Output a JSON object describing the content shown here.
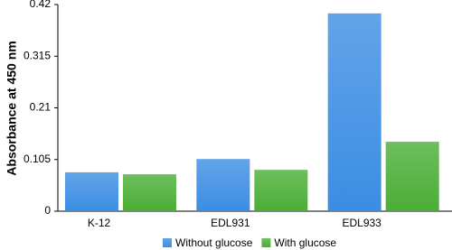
{
  "chart_data": {
    "type": "bar",
    "y_label": "Absorbance at 450 nm",
    "categories": [
      "K-12",
      "EDL931",
      "EDL933"
    ],
    "series": [
      {
        "name": "Without glucose",
        "color": "#3b8de3",
        "values": [
          0.079,
          0.106,
          0.402
        ]
      },
      {
        "name": "With glucose",
        "color": "#4aae35",
        "values": [
          0.075,
          0.084,
          0.141
        ]
      }
    ],
    "ylim": [
      0,
      0.42
    ],
    "yticks": [
      0,
      0.105,
      0.21,
      0.315,
      0.42
    ],
    "grid": false
  }
}
